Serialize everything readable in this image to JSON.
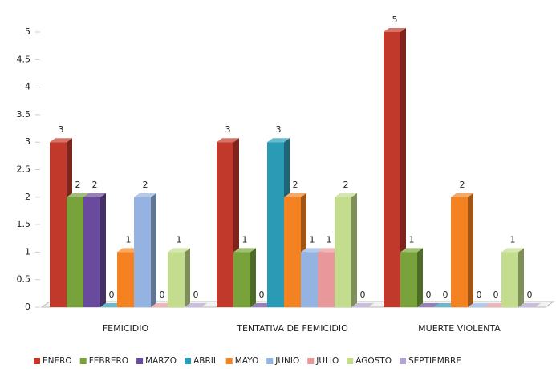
{
  "chart_data": {
    "type": "bar3d",
    "categories": [
      "FEMICIDIO",
      "TENTATIVA DE FEMICIDIO",
      "MUERTE VIOLENTA"
    ],
    "series": [
      {
        "name": "ENERO",
        "color": "#c0392b",
        "values": [
          3,
          3,
          5
        ]
      },
      {
        "name": "FEBRERO",
        "color": "#77a33a",
        "values": [
          2,
          1,
          1
        ]
      },
      {
        "name": "MARZO",
        "color": "#6a4a9c",
        "values": [
          2,
          0,
          0
        ]
      },
      {
        "name": "ABRIL",
        "color": "#2a9bb5",
        "values": [
          0,
          3,
          0
        ]
      },
      {
        "name": "MAYO",
        "color": "#f58220",
        "values": [
          1,
          2,
          2
        ]
      },
      {
        "name": "JUNIO",
        "color": "#95b3e0",
        "values": [
          2,
          1,
          0
        ]
      },
      {
        "name": "JULIO",
        "color": "#e8979a",
        "values": [
          0,
          1,
          0
        ]
      },
      {
        "name": "AGOSTO",
        "color": "#c3dc8d",
        "values": [
          1,
          2,
          1
        ]
      },
      {
        "name": "SEPTIEMBRE",
        "color": "#b3a3d1",
        "values": [
          0,
          0,
          0
        ]
      }
    ],
    "ylim": [
      0,
      5
    ],
    "yticks": [
      0,
      0.5,
      1,
      1.5,
      2,
      2.5,
      3,
      3.5,
      4,
      4.5,
      5
    ],
    "legend": "bottom"
  }
}
